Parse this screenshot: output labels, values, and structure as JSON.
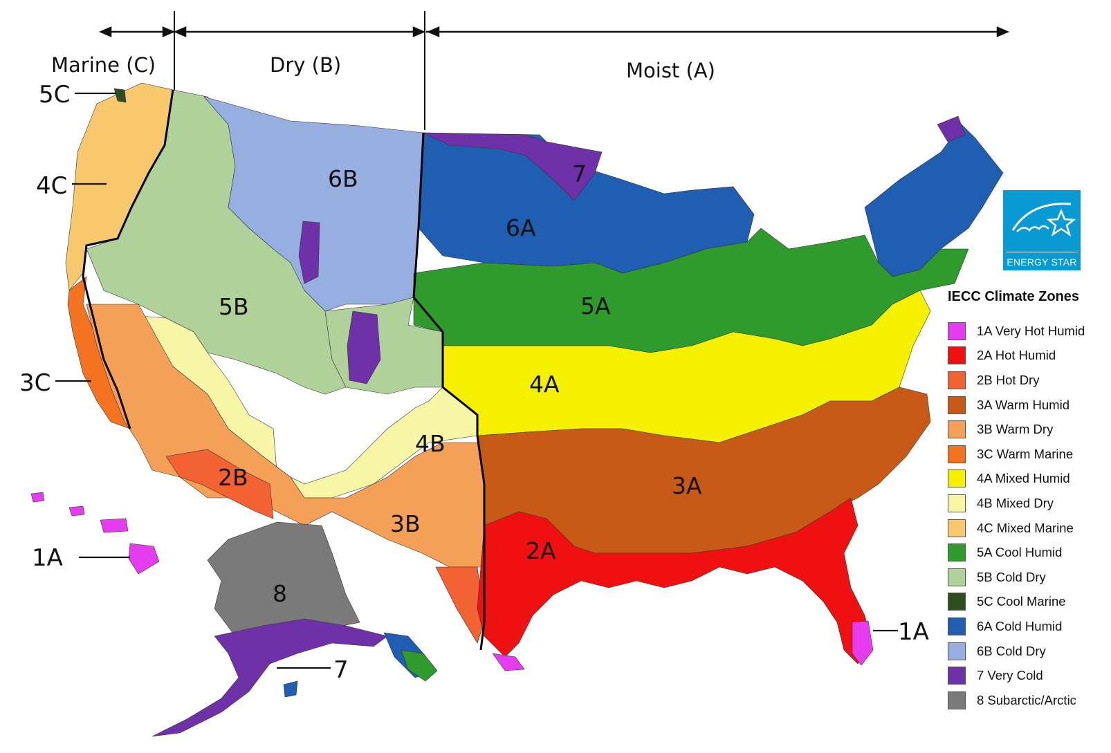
{
  "moisture_regimes": [
    {
      "id": "marine",
      "label": "Marine (C)"
    },
    {
      "id": "dry",
      "label": "Dry (B)"
    },
    {
      "id": "moist",
      "label": "Moist (A)"
    }
  ],
  "zone_labels": {
    "z7": "7",
    "z6b": "6B",
    "z6a": "6A",
    "z5b": "5B",
    "z5a": "5A",
    "z4a": "4A",
    "z4b": "4B",
    "z3a": "3A",
    "z3b": "3B",
    "z2b": "2B",
    "z2a": "2A",
    "z8": "8"
  },
  "callouts": {
    "c5c": "5C",
    "c4c": "4C",
    "c3c": "3C",
    "c1a_hawaii": "1A",
    "c7_alaska": "7",
    "c1a_florida": "1A"
  },
  "legend": {
    "title": "IECC Climate Zones",
    "items": [
      {
        "label": "1A Very Hot Humid",
        "color": "#e53cf0"
      },
      {
        "label": "2A Hot Humid",
        "color": "#ef1111"
      },
      {
        "label": "2B Hot Dry",
        "color": "#f26232"
      },
      {
        "label": "3A Warm Humid",
        "color": "#c65a16"
      },
      {
        "label": "3B Warm Dry",
        "color": "#f5a058"
      },
      {
        "label": "3C Warm Marine",
        "color": "#f47320"
      },
      {
        "label": "4A Mixed Humid",
        "color": "#f4f000"
      },
      {
        "label": "4B Mixed Dry",
        "color": "#f6f6a6"
      },
      {
        "label": "4C Mixed Marine",
        "color": "#f7c96c"
      },
      {
        "label": "5A Cool Humid",
        "color": "#2f9b2c"
      },
      {
        "label": "5B Cold Dry",
        "color": "#b0d29a"
      },
      {
        "label": "5C Cool Marine",
        "color": "#2f4e20"
      },
      {
        "label": "6A Cold Humid",
        "color": "#1f5eb0"
      },
      {
        "label": "6B Cold Dry",
        "color": "#96aee0"
      },
      {
        "label": "7 Very Cold",
        "color": "#6f31a8"
      },
      {
        "label": "8 Subarctic/Arctic",
        "color": "#7a7a7a"
      }
    ]
  },
  "logo": {
    "name": "ENERGY STAR"
  }
}
